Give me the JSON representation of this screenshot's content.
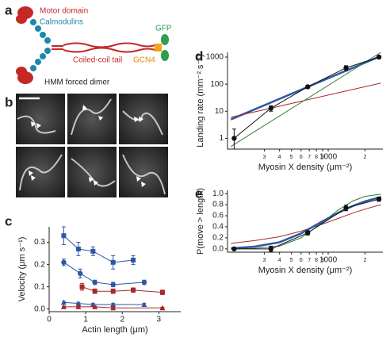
{
  "panel_labels": [
    "a",
    "b",
    "c",
    "d",
    "e"
  ],
  "diagram": {
    "motor": "Motor domain",
    "calmodulins": "Calmodulins",
    "tail": "Coiled-coil tail",
    "gfp": "GFP",
    "gcn4": "GCN4",
    "caption": "HMM forced dimer"
  },
  "chart_data": [
    {
      "type": "line",
      "xlabel": "Actin length (μm)",
      "ylabel": "Velocity (μm s⁻¹)",
      "xlim": [
        0,
        3.6
      ],
      "xticks": [
        0,
        1,
        2,
        3
      ],
      "ylim": [
        -0.012,
        0.37
      ],
      "yticks": [
        {
          "value": 0,
          "label": "0.0"
        },
        0.1,
        0.2,
        0.3
      ],
      "series": [
        {
          "color": "#2f56a6",
          "marker": "square",
          "x": [
            0.4,
            0.8,
            1.2,
            1.75,
            2.3
          ],
          "values": [
            0.33,
            0.27,
            0.26,
            0.21,
            0.22
          ],
          "errors": [
            0.04,
            0.03,
            0.02,
            0.03,
            0.02
          ]
        },
        {
          "color": "#2f56a6",
          "marker": "circle",
          "x": [
            0.4,
            0.85,
            1.25,
            1.75,
            2.6
          ],
          "values": [
            0.21,
            0.16,
            0.12,
            0.11,
            0.12
          ],
          "errors": [
            0.015,
            0.02,
            0.01,
            0.01,
            0.01
          ]
        },
        {
          "color": "#a52a2a",
          "marker": "square",
          "x": [
            0.9,
            1.25,
            1.75,
            2.3,
            3.1
          ],
          "values": [
            0.1,
            0.08,
            0.08,
            0.085,
            0.075
          ],
          "errors": [
            0.015,
            0.01,
            0.01,
            0.01,
            0.01
          ]
        },
        {
          "color": "#2f56a6",
          "marker": "triangle",
          "x": [
            0.4,
            0.8,
            1.2,
            1.75,
            2.6
          ],
          "values": [
            0.03,
            0.025,
            0.02,
            0.02,
            0.02
          ],
          "errors": [
            0.005,
            0.005,
            0.005,
            0.005,
            0.005
          ]
        },
        {
          "color": "#a52a2a",
          "marker": "triangle",
          "x": [
            0.4,
            0.8,
            1.25,
            1.75,
            3.1
          ],
          "values": [
            0.01,
            0.01,
            0.01,
            0.005,
            0.005
          ],
          "errors": [
            0.003,
            0.003,
            0.003,
            0.003,
            0.003
          ]
        }
      ]
    },
    {
      "type": "line",
      "xlabel": "Myosin X density (μm⁻²)",
      "ylabel": "Landing rate (mm⁻² s⁻¹)",
      "xscale": "log",
      "yscale": "log",
      "xlim": [
        150,
        2800
      ],
      "xticks": [
        {
          "value": 300,
          "label": "3"
        },
        {
          "value": 400,
          "label": "4"
        },
        {
          "value": 500,
          "label": "5"
        },
        {
          "value": 600,
          "label": "6"
        },
        {
          "value": 700,
          "label": "7"
        },
        {
          "value": 800,
          "label": "8"
        },
        {
          "value": 900,
          "label": "9"
        },
        1000,
        {
          "value": 2000,
          "label": "2"
        }
      ],
      "ylim": [
        0.4,
        1500
      ],
      "yticks": [
        1,
        10,
        100,
        1000
      ],
      "series": [
        {
          "color": "#2f56a6",
          "mode": "line",
          "width": 2.5,
          "x": [
            160,
            2700
          ],
          "values": [
            5,
            1100
          ]
        },
        {
          "color": "#a52a2a",
          "mode": "line",
          "width": 1,
          "x": [
            160,
            2700
          ],
          "values": [
            6,
            110
          ]
        },
        {
          "color": "#2e7d32",
          "mode": "line",
          "width": 1,
          "x": [
            160,
            2700
          ],
          "values": [
            0.5,
            1500
          ]
        },
        {
          "color": "#111",
          "marker": "circle",
          "x": [
            170,
            340,
            680,
            1400,
            2600
          ],
          "values": [
            1,
            13,
            80,
            400,
            1000
          ],
          "errors": [
            1.2,
            3,
            10,
            80,
            100
          ]
        }
      ]
    },
    {
      "type": "line",
      "xlabel": "Myosin X density (μm⁻²)",
      "ylabel": "P(move > length)",
      "xscale": "log",
      "xlim": [
        150,
        2800
      ],
      "xticks": [
        {
          "value": 300,
          "label": "3"
        },
        {
          "value": 400,
          "label": "4"
        },
        {
          "value": 500,
          "label": "5"
        },
        {
          "value": 600,
          "label": "6"
        },
        {
          "value": 700,
          "label": "7"
        },
        {
          "value": 800,
          "label": "8"
        },
        {
          "value": 900,
          "label": "9"
        },
        1000,
        {
          "value": 2000,
          "label": "2"
        }
      ],
      "ylim": [
        -0.06,
        1.06
      ],
      "yticks": [
        {
          "value": 0,
          "label": "0.0"
        },
        0.2,
        0.4,
        0.6,
        0.8,
        {
          "value": 1,
          "label": "1.0"
        }
      ],
      "series": [
        {
          "color": "#a52a2a",
          "mode": "line",
          "width": 1,
          "x": [
            160,
            250,
            400,
            600,
            900,
            1200,
            1600,
            2000,
            2700
          ],
          "values": [
            0.1,
            0.15,
            0.22,
            0.32,
            0.45,
            0.55,
            0.65,
            0.72,
            0.8
          ]
        },
        {
          "color": "#2e7d32",
          "mode": "line",
          "width": 1,
          "x": [
            160,
            250,
            400,
            600,
            900,
            1200,
            1600,
            2000,
            2700
          ],
          "values": [
            0,
            0.01,
            0.05,
            0.2,
            0.48,
            0.7,
            0.87,
            0.95,
            0.99
          ]
        },
        {
          "color": "#2f56a6",
          "mode": "line",
          "width": 2.5,
          "x": [
            160,
            250,
            400,
            600,
            900,
            1200,
            1600,
            2000,
            2700
          ],
          "values": [
            0.01,
            0.04,
            0.12,
            0.28,
            0.5,
            0.65,
            0.78,
            0.86,
            0.94
          ]
        },
        {
          "color": "#111",
          "marker": "circle",
          "x": [
            170,
            340,
            680,
            1400,
            2600
          ],
          "values": [
            0,
            0,
            0.29,
            0.74,
            0.9
          ],
          "errors": [
            0.02,
            0.05,
            0.04,
            0.05,
            0.04
          ]
        }
      ]
    }
  ]
}
